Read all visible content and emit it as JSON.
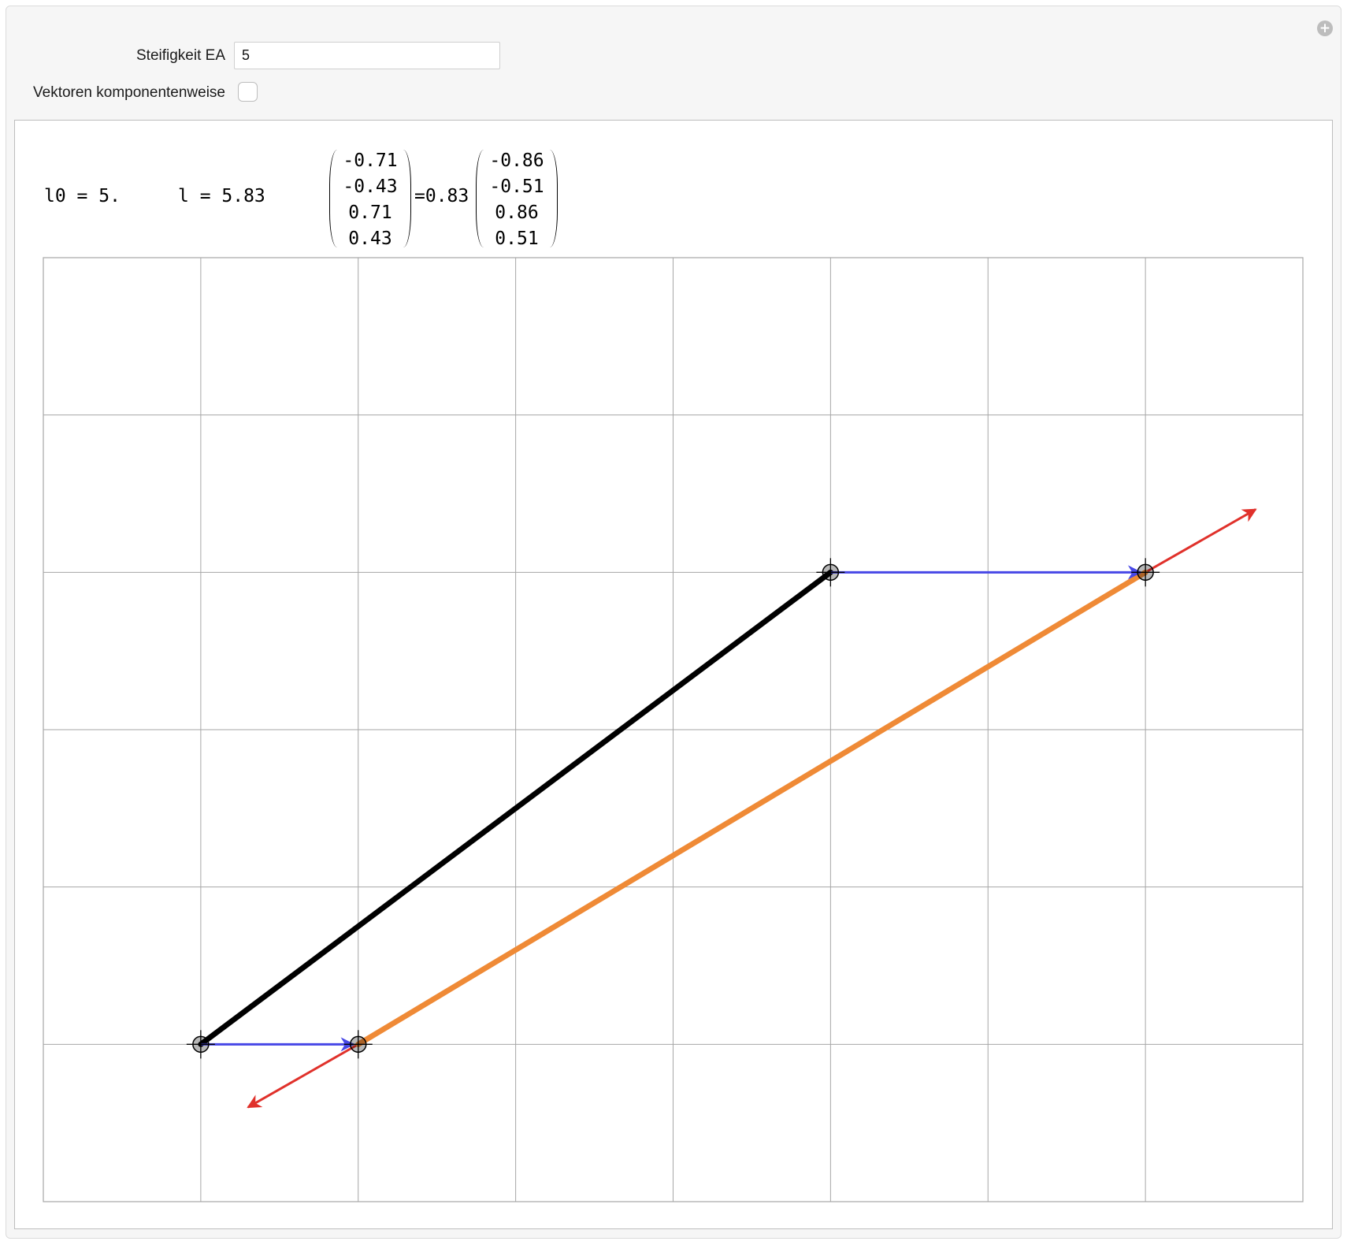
{
  "controls": {
    "stiffness_label": "Steifigkeit EA",
    "stiffness_value": "5",
    "componentwise_label": "Vektoren komponentenweise",
    "componentwise_checked": false,
    "plus_icon": "plus-circle-icon"
  },
  "readout": {
    "l0": "l0 = 5.",
    "l": "l = 5.83",
    "matrix_left": [
      "-0.71",
      "-0.43",
      "0.71",
      "0.43"
    ],
    "equals_factor": "=0.83",
    "matrix_right": [
      "-0.86",
      "-0.51",
      "0.86",
      "0.51"
    ]
  },
  "chart_data": {
    "type": "scatter",
    "title": "",
    "xlabel": "",
    "ylabel": "",
    "xlim": [
      0,
      8
    ],
    "ylim": [
      0,
      6
    ],
    "grid": true,
    "gridlines_x": [
      1,
      2,
      3,
      4,
      5,
      6,
      7
    ],
    "gridlines_y": [
      1,
      2,
      3,
      4,
      5
    ],
    "points": [
      {
        "name": "P1",
        "x": 1,
        "y": 1
      },
      {
        "name": "P2",
        "x": 5,
        "y": 4
      },
      {
        "name": "P1-displaced",
        "x": 2,
        "y": 1
      },
      {
        "name": "P2-displaced",
        "x": 7,
        "y": 4
      }
    ],
    "segments": [
      {
        "name": "original-rod",
        "from": [
          1,
          1
        ],
        "to": [
          5,
          4
        ],
        "color": "#000000"
      },
      {
        "name": "deformed-rod",
        "from": [
          2,
          1
        ],
        "to": [
          7,
          4
        ],
        "color": "#ef8a36"
      }
    ],
    "arrows": [
      {
        "name": "displacement-arrow-1",
        "from": [
          1,
          1
        ],
        "to": [
          2,
          1
        ],
        "color": "#4747e6"
      },
      {
        "name": "displacement-arrow-2",
        "from": [
          5,
          4
        ],
        "to": [
          7,
          4
        ],
        "color": "#4747e6"
      },
      {
        "name": "force-arrow-1",
        "from": [
          2,
          1
        ],
        "to": [
          1.3,
          0.6
        ],
        "color": "#e0312b"
      },
      {
        "name": "force-arrow-2",
        "from": [
          7,
          4
        ],
        "to": [
          7.7,
          4.4
        ],
        "color": "#e0312b"
      }
    ]
  }
}
